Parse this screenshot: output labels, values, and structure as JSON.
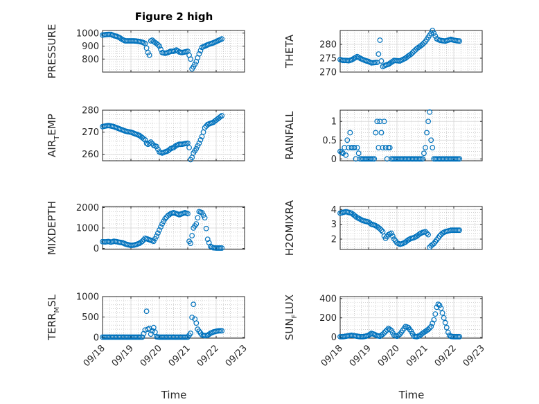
{
  "figure_title": "Figure 2 high",
  "colors": {
    "marker": "#0072BD",
    "axis": "#262626",
    "grid": "#b0b0b0",
    "background": "#ffffff"
  },
  "x_axis": {
    "label": "Time",
    "ticks": [
      "09/18",
      "09/19",
      "09/20",
      "09/21",
      "09/22",
      "09/23"
    ],
    "start": "2009-09-18",
    "end": "2009-09-23"
  },
  "chart_data": [
    {
      "type": "scatter",
      "id": "pressure",
      "ylabel": "PRESSURE",
      "title": "Figure 2 high",
      "ylim": [
        700,
        1020
      ],
      "yticks": [
        800,
        900,
        1000
      ],
      "grid": true,
      "x": [
        0,
        0.1,
        0.2,
        0.3,
        0.4,
        0.5,
        0.6,
        0.7,
        0.8,
        0.9,
        1.0,
        1.1,
        1.2,
        1.3,
        1.4,
        1.5,
        1.6,
        1.65,
        1.7,
        1.75,
        1.8,
        1.9,
        2.0,
        2.1,
        2.2,
        2.3,
        2.4,
        2.5,
        2.6,
        2.7,
        2.8,
        2.9,
        3.0,
        3.05,
        3.1,
        3.15,
        3.2,
        3.3,
        3.4,
        3.5,
        3.6,
        3.7,
        3.8,
        3.9,
        4.0,
        4.1,
        4.2
      ],
      "y": [
        985,
        988,
        990,
        990,
        980,
        975,
        965,
        950,
        940,
        940,
        940,
        940,
        938,
        935,
        930,
        920,
        850,
        830,
        940,
        945,
        935,
        920,
        900,
        850,
        845,
        850,
        860,
        860,
        870,
        855,
        850,
        855,
        860,
        830,
        800,
        725,
        740,
        780,
        840,
        890,
        900,
        910,
        918,
        925,
        935,
        945,
        955
      ]
    },
    {
      "type": "scatter",
      "id": "theta",
      "ylabel": "THETA",
      "ylim": [
        270,
        285
      ],
      "yticks": [
        270,
        275,
        280
      ],
      "grid": true,
      "x": [
        0,
        0.1,
        0.2,
        0.3,
        0.4,
        0.5,
        0.6,
        0.7,
        0.8,
        0.9,
        1.0,
        1.1,
        1.2,
        1.3,
        1.35,
        1.4,
        1.45,
        1.5,
        1.6,
        1.7,
        1.8,
        1.9,
        2.0,
        2.1,
        2.2,
        2.3,
        2.4,
        2.5,
        2.6,
        2.7,
        2.8,
        2.9,
        3.0,
        3.1,
        3.2,
        3.25,
        3.3,
        3.35,
        3.4,
        3.5,
        3.6,
        3.7,
        3.8,
        3.9,
        4.0,
        4.1,
        4.2
      ],
      "y": [
        274.5,
        274.2,
        274.2,
        274.1,
        274.4,
        275.0,
        275.6,
        275.0,
        274.5,
        274.1,
        273.8,
        273.3,
        273.4,
        273.5,
        276.5,
        281.5,
        274.0,
        272.0,
        272.5,
        272.8,
        273.5,
        274.2,
        274.1,
        274.0,
        274.5,
        275.0,
        275.8,
        276.5,
        277.5,
        278.5,
        279.2,
        280.0,
        281.0,
        282.5,
        284.0,
        285.0,
        284.0,
        283.0,
        282.0,
        281.5,
        281.3,
        281.2,
        281.5,
        281.8,
        281.5,
        281.3,
        281.2
      ]
    },
    {
      "type": "scatter",
      "id": "air_temp",
      "ylabel": "AIR_TEMP",
      "ylabel_parts": [
        "AIR",
        "T",
        "EMP"
      ],
      "ylim": [
        257,
        280
      ],
      "yticks": [
        260,
        270,
        280
      ],
      "grid": true,
      "x": [
        0,
        0.1,
        0.2,
        0.3,
        0.4,
        0.5,
        0.6,
        0.7,
        0.8,
        0.9,
        1.0,
        1.1,
        1.2,
        1.3,
        1.4,
        1.5,
        1.55,
        1.6,
        1.7,
        1.8,
        1.9,
        2.0,
        2.1,
        2.2,
        2.3,
        2.4,
        2.5,
        2.6,
        2.7,
        2.8,
        2.9,
        3.0,
        3.05,
        3.1,
        3.15,
        3.2,
        3.3,
        3.4,
        3.5,
        3.6,
        3.7,
        3.8,
        3.9,
        4.0,
        4.1,
        4.2
      ],
      "y": [
        272.5,
        272.8,
        273.0,
        272.8,
        272.5,
        272.0,
        271.5,
        271.0,
        270.5,
        270.2,
        270.0,
        269.5,
        269.0,
        268.5,
        267.5,
        266.5,
        265.0,
        264.5,
        265.5,
        264.0,
        263.5,
        261.0,
        260.5,
        261.0,
        261.5,
        262.5,
        263.0,
        264.0,
        264.5,
        264.5,
        264.8,
        265.0,
        263.0,
        257.5,
        258.5,
        260.5,
        262.5,
        265.0,
        268.0,
        272.0,
        273.5,
        274.0,
        274.5,
        275.5,
        276.5,
        277.5
      ]
    },
    {
      "type": "scatter",
      "id": "rainfall",
      "ylabel": "RAINFALL",
      "ylim": [
        -0.05,
        1.3
      ],
      "yticks": [
        0,
        0.5,
        1
      ],
      "ytick_labels": [
        "0",
        "0.5",
        "1"
      ],
      "grid": true,
      "x": [
        0,
        0.1,
        0.15,
        0.2,
        0.25,
        0.3,
        0.35,
        0.4,
        0.45,
        0.5,
        0.55,
        0.6,
        0.7,
        0.8,
        0.9,
        1.0,
        1.1,
        1.2,
        1.25,
        1.3,
        1.35,
        1.4,
        1.45,
        1.5,
        1.55,
        1.6,
        1.65,
        1.7,
        1.75,
        1.8,
        1.9,
        2.0,
        2.1,
        2.2,
        2.3,
        2.4,
        2.5,
        2.6,
        2.7,
        2.8,
        2.9,
        3.0,
        3.05,
        3.1,
        3.15,
        3.2,
        3.25,
        3.3,
        3.4,
        3.5,
        3.6,
        3.7,
        3.8,
        3.9,
        4.0,
        4.1,
        4.2
      ],
      "y": [
        0.2,
        0.15,
        0.3,
        0.1,
        0.5,
        0.3,
        0.7,
        0.3,
        0.3,
        0.3,
        0.0,
        0.3,
        0.0,
        0.0,
        0.0,
        0.0,
        0.0,
        0.0,
        0.7,
        1.0,
        0.3,
        1.0,
        0.7,
        0.3,
        1.0,
        0.3,
        0.0,
        0.3,
        0.3,
        0.0,
        0.0,
        0.0,
        0.0,
        0.0,
        0.0,
        0.0,
        0.0,
        0.0,
        0.0,
        0.0,
        0.0,
        0.3,
        0.7,
        1.0,
        1.25,
        0.5,
        0.3,
        0.0,
        0.0,
        0.0,
        0.0,
        0.0,
        0.0,
        0.0,
        0.0,
        0.0,
        0.0
      ]
    },
    {
      "type": "scatter",
      "id": "mixdepth",
      "ylabel": "MIXDEPTH",
      "ylim": [
        -50,
        2050
      ],
      "yticks": [
        0,
        1000,
        2000
      ],
      "grid": true,
      "x": [
        0,
        0.1,
        0.2,
        0.3,
        0.4,
        0.5,
        0.6,
        0.7,
        0.8,
        0.9,
        1.0,
        1.1,
        1.2,
        1.3,
        1.4,
        1.5,
        1.6,
        1.7,
        1.8,
        1.9,
        2.0,
        2.1,
        2.2,
        2.3,
        2.4,
        2.5,
        2.6,
        2.7,
        2.8,
        2.9,
        3.0,
        3.05,
        3.1,
        3.2,
        3.3,
        3.4,
        3.5,
        3.6,
        3.7,
        3.8,
        3.9,
        4.0,
        4.1,
        4.2
      ],
      "y": [
        330,
        320,
        340,
        310,
        350,
        330,
        300,
        280,
        220,
        180,
        150,
        160,
        200,
        250,
        350,
        500,
        450,
        400,
        350,
        600,
        900,
        1200,
        1450,
        1600,
        1700,
        1750,
        1700,
        1650,
        1700,
        1750,
        1700,
        350,
        250,
        1000,
        1200,
        1800,
        1750,
        1500,
        450,
        100,
        30,
        20,
        20,
        20
      ]
    },
    {
      "type": "scatter",
      "id": "h2omixra",
      "ylabel": "H2OMIXRA",
      "ylim": [
        1.3,
        4.2
      ],
      "yticks": [
        2,
        3,
        4
      ],
      "grid": true,
      "x": [
        0,
        0.1,
        0.2,
        0.3,
        0.4,
        0.5,
        0.6,
        0.7,
        0.8,
        0.9,
        1.0,
        1.1,
        1.2,
        1.3,
        1.4,
        1.5,
        1.55,
        1.6,
        1.7,
        1.8,
        1.9,
        2.0,
        2.1,
        2.2,
        2.3,
        2.4,
        2.5,
        2.6,
        2.7,
        2.8,
        2.9,
        3.0,
        3.1,
        3.15,
        3.2,
        3.3,
        3.4,
        3.5,
        3.6,
        3.7,
        3.8,
        3.9,
        4.0,
        4.1,
        4.2
      ],
      "y": [
        3.75,
        3.8,
        3.85,
        3.8,
        3.75,
        3.6,
        3.45,
        3.35,
        3.25,
        3.2,
        3.15,
        3.0,
        2.95,
        2.85,
        2.7,
        2.5,
        2.2,
        2.05,
        2.3,
        2.4,
        2.0,
        1.75,
        1.65,
        1.7,
        1.8,
        1.95,
        2.05,
        2.1,
        2.2,
        2.35,
        2.45,
        2.5,
        2.3,
        1.45,
        1.55,
        1.7,
        1.95,
        2.2,
        2.4,
        2.5,
        2.55,
        2.6,
        2.6,
        2.6,
        2.6
      ]
    },
    {
      "type": "scatter",
      "id": "terr_msl",
      "ylabel": "TERR_MSL",
      "ylabel_parts": [
        "TERR",
        "M",
        "SL"
      ],
      "ylim": [
        -20,
        1000
      ],
      "yticks": [
        0,
        500,
        1000
      ],
      "grid": true,
      "x": [
        0,
        0.2,
        0.4,
        0.6,
        0.8,
        1.0,
        1.2,
        1.4,
        1.5,
        1.55,
        1.6,
        1.65,
        1.7,
        1.8,
        1.9,
        2.0,
        2.2,
        2.4,
        2.6,
        2.8,
        3.0,
        3.1,
        3.15,
        3.2,
        3.25,
        3.3,
        3.35,
        3.4,
        3.5,
        3.6,
        3.7,
        3.8,
        3.9,
        4.0,
        4.1,
        4.2
      ],
      "y": [
        5,
        5,
        5,
        5,
        5,
        5,
        5,
        5,
        180,
        640,
        200,
        220,
        80,
        240,
        15,
        5,
        5,
        5,
        5,
        5,
        5,
        100,
        490,
        810,
        450,
        350,
        200,
        150,
        60,
        40,
        50,
        100,
        130,
        150,
        160,
        160
      ]
    },
    {
      "type": "scatter",
      "id": "sunflux",
      "ylabel": "SUN_FLUX",
      "ylabel_parts": [
        "SUN",
        "F",
        "LUX"
      ],
      "ylim": [
        -10,
        420
      ],
      "yticks": [
        0,
        200,
        400
      ],
      "grid": true,
      "x": [
        0,
        0.1,
        0.2,
        0.3,
        0.4,
        0.5,
        0.6,
        0.7,
        0.8,
        0.9,
        1.0,
        1.1,
        1.2,
        1.3,
        1.4,
        1.5,
        1.6,
        1.7,
        1.8,
        1.9,
        2.0,
        2.1,
        2.2,
        2.3,
        2.4,
        2.5,
        2.6,
        2.7,
        2.8,
        2.9,
        3.0,
        3.1,
        3.2,
        3.3,
        3.35,
        3.4,
        3.45,
        3.5,
        3.55,
        3.6,
        3.65,
        3.7,
        3.75,
        3.8,
        3.85,
        3.9,
        4.0,
        4.1,
        4.2
      ],
      "y": [
        5,
        5,
        10,
        15,
        20,
        15,
        10,
        5,
        5,
        10,
        20,
        40,
        30,
        15,
        10,
        30,
        60,
        90,
        70,
        20,
        10,
        30,
        70,
        110,
        100,
        60,
        10,
        5,
        15,
        40,
        60,
        80,
        110,
        180,
        240,
        310,
        340,
        330,
        300,
        250,
        200,
        150,
        100,
        50,
        20,
        8,
        5,
        5,
        5
      ]
    }
  ]
}
